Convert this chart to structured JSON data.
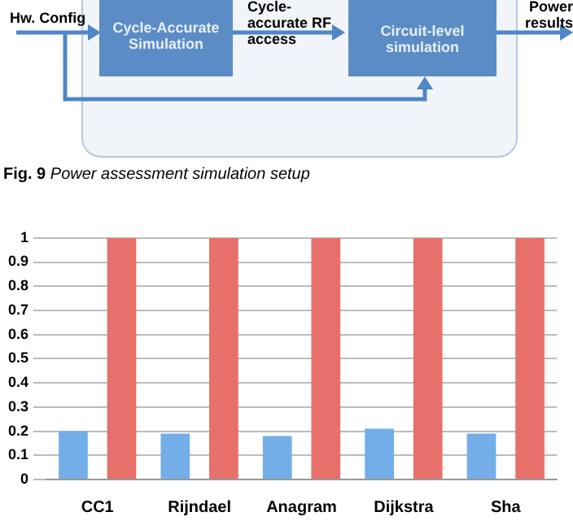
{
  "chart_data": [
    {
      "type": "other",
      "title": "Fig. 9 Power assessment simulation setup",
      "annotations": [
        "Hw. Config",
        "Cycle-Accurate Simulation",
        "Cycle-accurate RF access",
        "Circuit-level simulation",
        "Power results"
      ]
    },
    {
      "type": "bar",
      "categories": [
        "CC1",
        "Rijndael",
        "Anagram",
        "Dijkstra",
        "Sha"
      ],
      "series": [
        {
          "color": "#74aee8",
          "values": [
            0.2,
            0.19,
            0.18,
            0.21,
            0.19
          ]
        },
        {
          "color": "#e8706a",
          "values": [
            1,
            1,
            1,
            1,
            1
          ]
        }
      ],
      "ylim": [
        0,
        1
      ],
      "yticks": [
        0,
        0.1,
        0.2,
        0.3,
        0.4,
        0.5,
        0.6,
        0.7,
        0.8,
        0.9,
        1
      ],
      "grid": "y"
    }
  ]
}
